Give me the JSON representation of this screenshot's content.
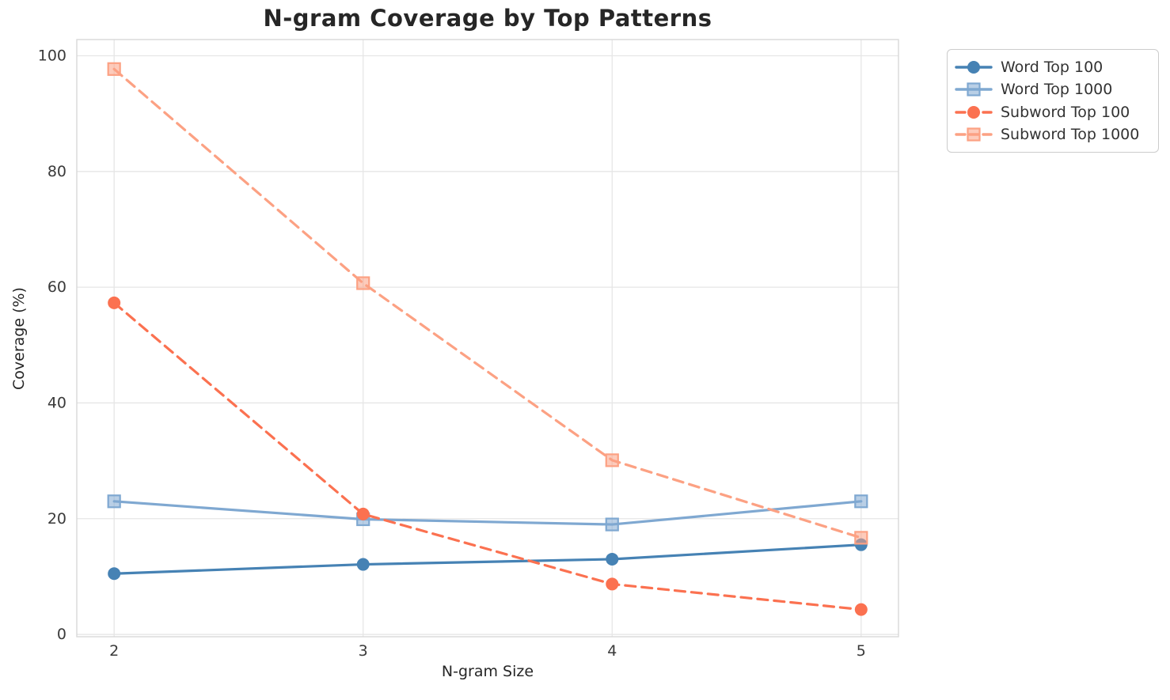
{
  "chart_data": {
    "type": "line",
    "title": "N-gram Coverage by Top Patterns",
    "xlabel": "N-gram Size",
    "ylabel": "Coverage (%)",
    "x": [
      2,
      3,
      4,
      5
    ],
    "xticks": [
      "2",
      "3",
      "4",
      "5"
    ],
    "yticks": [
      "0",
      "20",
      "40",
      "60",
      "80",
      "100"
    ],
    "ytick_values": [
      0,
      20,
      40,
      60,
      80,
      100
    ],
    "xlim": [
      1.85,
      5.15
    ],
    "ylim": [
      -0.4,
      102.8
    ],
    "grid": true,
    "legend_position": "upper-right-outside",
    "series": [
      {
        "name": "Word Top 100",
        "values": [
          10.5,
          12.1,
          13.0,
          15.5
        ],
        "color": "#4682B4",
        "marker": "circle",
        "line_style": "solid"
      },
      {
        "name": "Word Top 1000",
        "values": [
          23.0,
          19.9,
          19.0,
          23.0
        ],
        "color": "#7FA8D1",
        "marker": "square",
        "line_style": "solid"
      },
      {
        "name": "Subword Top 100",
        "values": [
          57.3,
          20.8,
          8.7,
          4.3
        ],
        "color": "#FB7150",
        "marker": "circle",
        "line_style": "dashed"
      },
      {
        "name": "Subword Top 1000",
        "values": [
          97.7,
          60.7,
          30.1,
          16.7
        ],
        "color": "#FCA183",
        "marker": "square",
        "line_style": "dashed"
      }
    ],
    "colors": {
      "grid": "#e6e6e6",
      "spine": "#d8d8d8",
      "tick_text": "#3a3a3a",
      "title_text": "#262626"
    }
  }
}
